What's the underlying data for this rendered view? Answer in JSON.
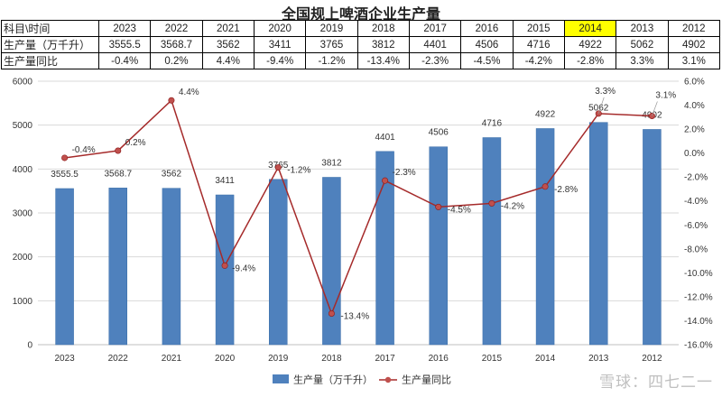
{
  "title": "全国规上啤酒企业生产量",
  "table": {
    "header_label": "科目\\时间",
    "row1_label": "生产量（万千升）",
    "row2_label": "生产量同比",
    "highlight_year": "2014",
    "production_text": [
      "3555.5",
      "3568.7",
      "3562",
      "3411",
      "3765",
      "3812",
      "4401",
      "4506",
      "4716",
      "4922",
      "5062",
      "4902"
    ],
    "yoy_text": [
      "-0.4%",
      "0.2%",
      "4.4%",
      "-9.4%",
      "-1.2%",
      "-13.4%",
      "-2.3%",
      "-4.5%",
      "-4.2%",
      "-2.8%",
      "3.3%",
      "3.1%"
    ]
  },
  "chart_data": {
    "type": "bar",
    "categories": [
      "2023",
      "2022",
      "2021",
      "2020",
      "2019",
      "2018",
      "2017",
      "2016",
      "2015",
      "2014",
      "2013",
      "2012"
    ],
    "series": [
      {
        "name": "生产量（万千升）",
        "type": "bar",
        "axis": "left",
        "values": [
          3555.5,
          3568.7,
          3562,
          3411,
          3765,
          3812,
          4401,
          4506,
          4716,
          4922,
          5062,
          4902
        ]
      },
      {
        "name": "生产量同比",
        "type": "line",
        "axis": "right",
        "values": [
          -0.4,
          0.2,
          4.4,
          -9.4,
          -1.2,
          -13.4,
          -2.3,
          -4.5,
          -4.2,
          -2.8,
          3.3,
          3.1
        ]
      }
    ],
    "ylim_left": [
      0,
      6000
    ],
    "ytick_left": 1000,
    "ylim_right": [
      -16,
      6
    ],
    "ytick_right": 2,
    "grid": "horizontal",
    "legend_position": "bottom-center",
    "colors": {
      "bar": "#4f81bd",
      "bar_edge": "#3a6ea8",
      "line": "#a52a2a",
      "marker": "#c0504d",
      "grid": "#d9d9d9",
      "highlight": "#ffff00"
    }
  },
  "watermark": "雪球：四七二一"
}
